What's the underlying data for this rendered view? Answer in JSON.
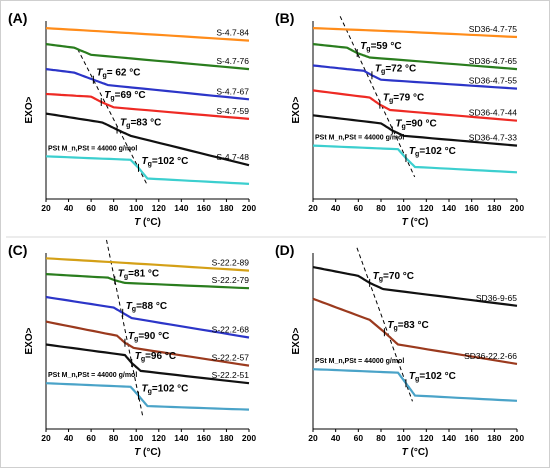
{
  "chart_data": [
    {
      "type": "line",
      "panel_label": "(A)",
      "xlabel_italic": "T",
      "xlabel_unit": " (°C)",
      "ylabel": "EXO>",
      "xlim": [
        20,
        200
      ],
      "xticks": [
        20,
        40,
        60,
        80,
        100,
        120,
        140,
        160,
        180,
        200
      ],
      "grid": false,
      "series": [
        {
          "name": "S-4.7-84",
          "color": "#ff8c1a",
          "x": [
            20,
            100,
            200
          ],
          "y": [
            9.6,
            9.3,
            8.9
          ],
          "tg": null
        },
        {
          "name": "S-4.7-76",
          "color": "#2a7d1e",
          "x": [
            20,
            45,
            60,
            200
          ],
          "y": [
            8.7,
            8.5,
            8.1,
            7.3
          ],
          "tg": null
        },
        {
          "name": "S-4.7-67",
          "color": "#2c35c8",
          "x": [
            20,
            45,
            62,
            75,
            200
          ],
          "y": [
            7.3,
            7.1,
            6.7,
            6.4,
            5.6
          ],
          "tg": {
            "label": "= 62 °C",
            "value": 62
          }
        },
        {
          "name": "S-4.7-59",
          "color": "#ee2a24",
          "x": [
            20,
            60,
            69,
            80,
            200
          ],
          "y": [
            5.9,
            5.75,
            5.45,
            5.15,
            4.5
          ],
          "tg": {
            "label": "=69 °C",
            "value": 69
          }
        },
        {
          "name": "S-4.7-48",
          "color": "#111111",
          "x": [
            20,
            70,
            83,
            95,
            200
          ],
          "y": [
            4.8,
            4.3,
            3.9,
            3.55,
            1.9
          ],
          "tg": {
            "label": "=83 °C",
            "value": 83
          }
        },
        {
          "name": "PSt M_n,PSt = 44000 g/mol",
          "color": "#3ccfcf",
          "x": [
            20,
            95,
            102,
            110,
            200
          ],
          "y": [
            2.4,
            2.2,
            1.75,
            1.15,
            0.85
          ],
          "tg": {
            "label": "=102 °C",
            "value": 102
          }
        }
      ],
      "annotation": "PSt M_n,PSt = 44000 g/mol"
    },
    {
      "type": "line",
      "panel_label": "(B)",
      "xlabel_italic": "T",
      "xlabel_unit": " (°C)",
      "ylabel": "EXO>",
      "xlim": [
        20,
        200
      ],
      "xticks": [
        20,
        40,
        60,
        80,
        100,
        120,
        140,
        160,
        180,
        200
      ],
      "grid": false,
      "series": [
        {
          "name": "SD36-4.7-75",
          "color": "#ff8c1a",
          "x": [
            20,
            100,
            200
          ],
          "y": [
            9.6,
            9.4,
            9.1
          ],
          "tg": null
        },
        {
          "name": "SD36-4.7-65",
          "color": "#2a7d1e",
          "x": [
            20,
            50,
            59,
            70,
            200
          ],
          "y": [
            8.7,
            8.5,
            8.2,
            7.95,
            7.3
          ],
          "tg": {
            "label": "=59 °C",
            "value": 59
          }
        },
        {
          "name": "SD36-4.7-55",
          "color": "#2c35c8",
          "x": [
            20,
            65,
            72,
            80,
            200
          ],
          "y": [
            7.5,
            7.2,
            6.95,
            6.7,
            6.2
          ],
          "tg": {
            "label": "=72 °C",
            "value": 72
          }
        },
        {
          "name": "SD36-4.7-44",
          "color": "#ee2a24",
          "x": [
            20,
            70,
            79,
            88,
            200
          ],
          "y": [
            6.1,
            5.7,
            5.3,
            5.0,
            4.4
          ],
          "tg": {
            "label": "=79 °C",
            "value": 79
          }
        },
        {
          "name": "SD36-4.7-33",
          "color": "#111111",
          "x": [
            20,
            80,
            90,
            100,
            200
          ],
          "y": [
            4.7,
            4.25,
            3.85,
            3.55,
            3.0
          ],
          "tg": {
            "label": "=90 °C",
            "value": 90
          }
        },
        {
          "name": "PSt M_n,PSt = 44000 g/mol",
          "color": "#3ccfcf",
          "x": [
            20,
            95,
            102,
            110,
            200
          ],
          "y": [
            3.0,
            2.8,
            2.3,
            1.8,
            1.5
          ],
          "tg": {
            "label": "=102 °C",
            "value": 102
          }
        }
      ],
      "annotation": "PSt M_n,PSt = 44000 g/mol"
    },
    {
      "type": "line",
      "panel_label": "(C)",
      "xlabel_italic": "T",
      "xlabel_unit": " (°C)",
      "ylabel": "EXO>",
      "xlim": [
        20,
        200
      ],
      "xticks": [
        20,
        40,
        60,
        80,
        100,
        120,
        140,
        160,
        180,
        200
      ],
      "grid": false,
      "series": [
        {
          "name": "S-22.2-89",
          "color": "#d4a017",
          "x": [
            20,
            100,
            200
          ],
          "y": [
            9.7,
            9.4,
            9.0
          ],
          "tg": null
        },
        {
          "name": "S-22.2-79",
          "color": "#2a7d1e",
          "x": [
            20,
            75,
            81,
            90,
            200
          ],
          "y": [
            8.8,
            8.6,
            8.45,
            8.3,
            8.0
          ],
          "tg": {
            "label": "=81 °C",
            "value": 81
          }
        },
        {
          "name": "S-22.2-68",
          "color": "#2c35c8",
          "x": [
            20,
            80,
            88,
            96,
            200
          ],
          "y": [
            7.5,
            6.9,
            6.6,
            6.3,
            5.2
          ],
          "tg": {
            "label": "=88 °C",
            "value": 88
          }
        },
        {
          "name": "S-22.2-57",
          "color": "#9b3a1e",
          "x": [
            20,
            83,
            90,
            98,
            200
          ],
          "y": [
            6.1,
            5.3,
            4.9,
            4.6,
            3.6
          ],
          "tg": {
            "label": "=90 °C",
            "value": 90
          }
        },
        {
          "name": "S-22.2-51",
          "color": "#111111",
          "x": [
            20,
            90,
            96,
            104,
            200
          ],
          "y": [
            4.8,
            4.2,
            3.75,
            3.3,
            2.6
          ],
          "tg": {
            "label": "=96 °C",
            "value": 96
          }
        },
        {
          "name": "PSt M_n,PSt = 44000 g/mol",
          "color": "#4aa3c8",
          "x": [
            20,
            95,
            102,
            110,
            200
          ],
          "y": [
            2.6,
            2.4,
            1.9,
            1.3,
            1.1
          ],
          "tg": {
            "label": "=102 °C",
            "value": 102
          }
        }
      ],
      "annotation": "PSt M_n,PSt = 44000 g/mol"
    },
    {
      "type": "line",
      "panel_label": "(D)",
      "xlabel_italic": "T",
      "xlabel_unit": " (°C)",
      "ylabel": "EXO>",
      "xlim": [
        20,
        200
      ],
      "xticks": [
        20,
        40,
        60,
        80,
        100,
        120,
        140,
        160,
        180,
        200
      ],
      "grid": false,
      "series": [
        {
          "name": "SD36-9-65",
          "color": "#111111",
          "x": [
            20,
            60,
            70,
            82,
            200
          ],
          "y": [
            9.2,
            8.7,
            8.3,
            7.95,
            7.0
          ],
          "tg": {
            "label": "=70 °C",
            "value": 70
          }
        },
        {
          "name": "SD36-22.2-66",
          "color": "#9b3a1e",
          "x": [
            20,
            70,
            83,
            95,
            200
          ],
          "y": [
            7.4,
            6.2,
            5.5,
            4.8,
            3.7
          ],
          "tg": {
            "label": "=83 °C",
            "value": 83
          }
        },
        {
          "name": "PSt M_n,PSt = 44000 g/mol",
          "color": "#4aa3c8",
          "x": [
            20,
            95,
            102,
            110,
            200
          ],
          "y": [
            3.4,
            3.2,
            2.6,
            1.9,
            1.6
          ],
          "tg": {
            "label": "=102 °C",
            "value": 102
          }
        }
      ],
      "annotation": "PSt M_n,PSt = 44000 g/mol"
    }
  ]
}
